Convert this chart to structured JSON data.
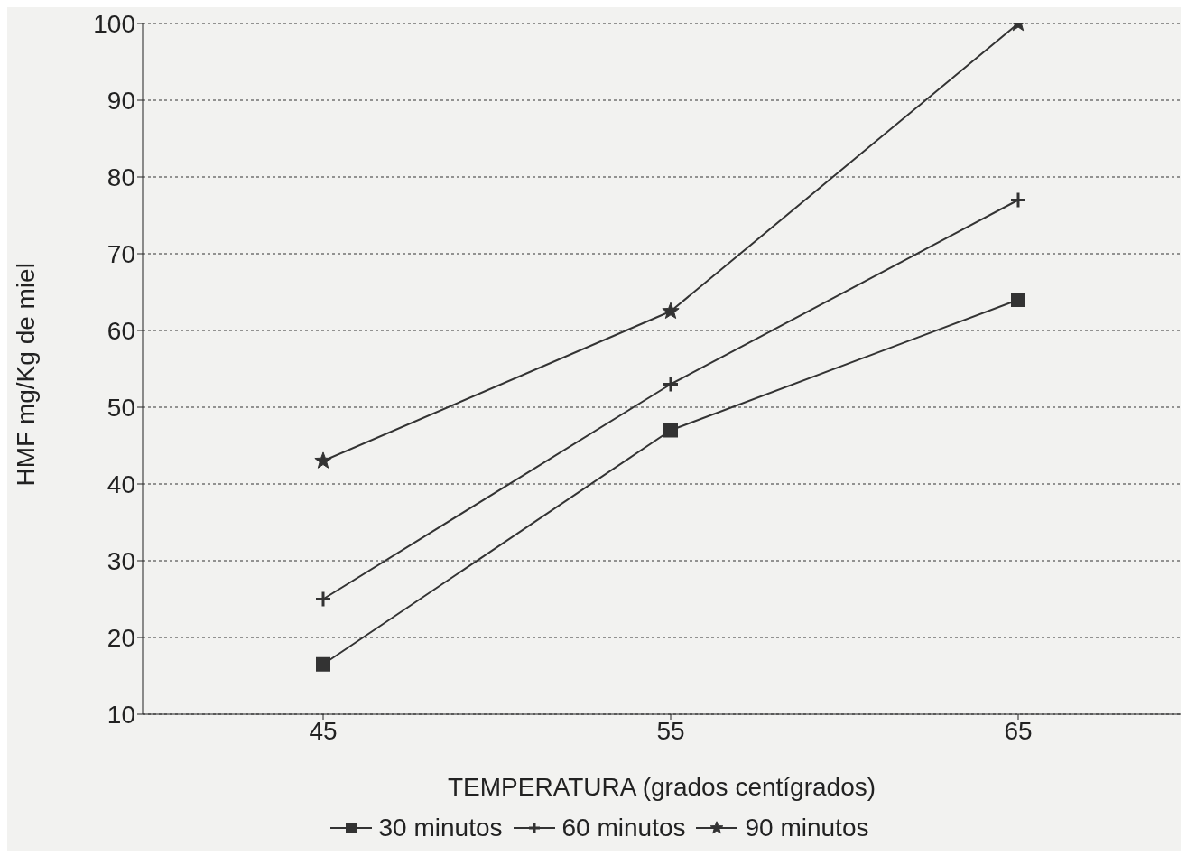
{
  "chart_data": {
    "type": "line",
    "xlabel": "TEMPERATURA (grados centígrados)",
    "ylabel": "HMF mg/Kg de miel",
    "categories": [
      "45",
      "55",
      "65"
    ],
    "series": [
      {
        "name": "30 minutos",
        "color": "#333333",
        "values": [
          16.5,
          47,
          64
        ],
        "marker": "square"
      },
      {
        "name": "60 minutos",
        "color": "#333333",
        "values": [
          25,
          53,
          77
        ],
        "marker": "cross"
      },
      {
        "name": "90 minutos",
        "color": "#333333",
        "values": [
          43,
          62.5,
          100
        ],
        "marker": "star"
      }
    ],
    "ylim": [
      10,
      100
    ],
    "yticks": [
      10,
      20,
      30,
      40,
      50,
      60,
      70,
      80,
      90,
      100
    ],
    "grid": "y",
    "legend": "bottom",
    "line_style": "solid"
  }
}
